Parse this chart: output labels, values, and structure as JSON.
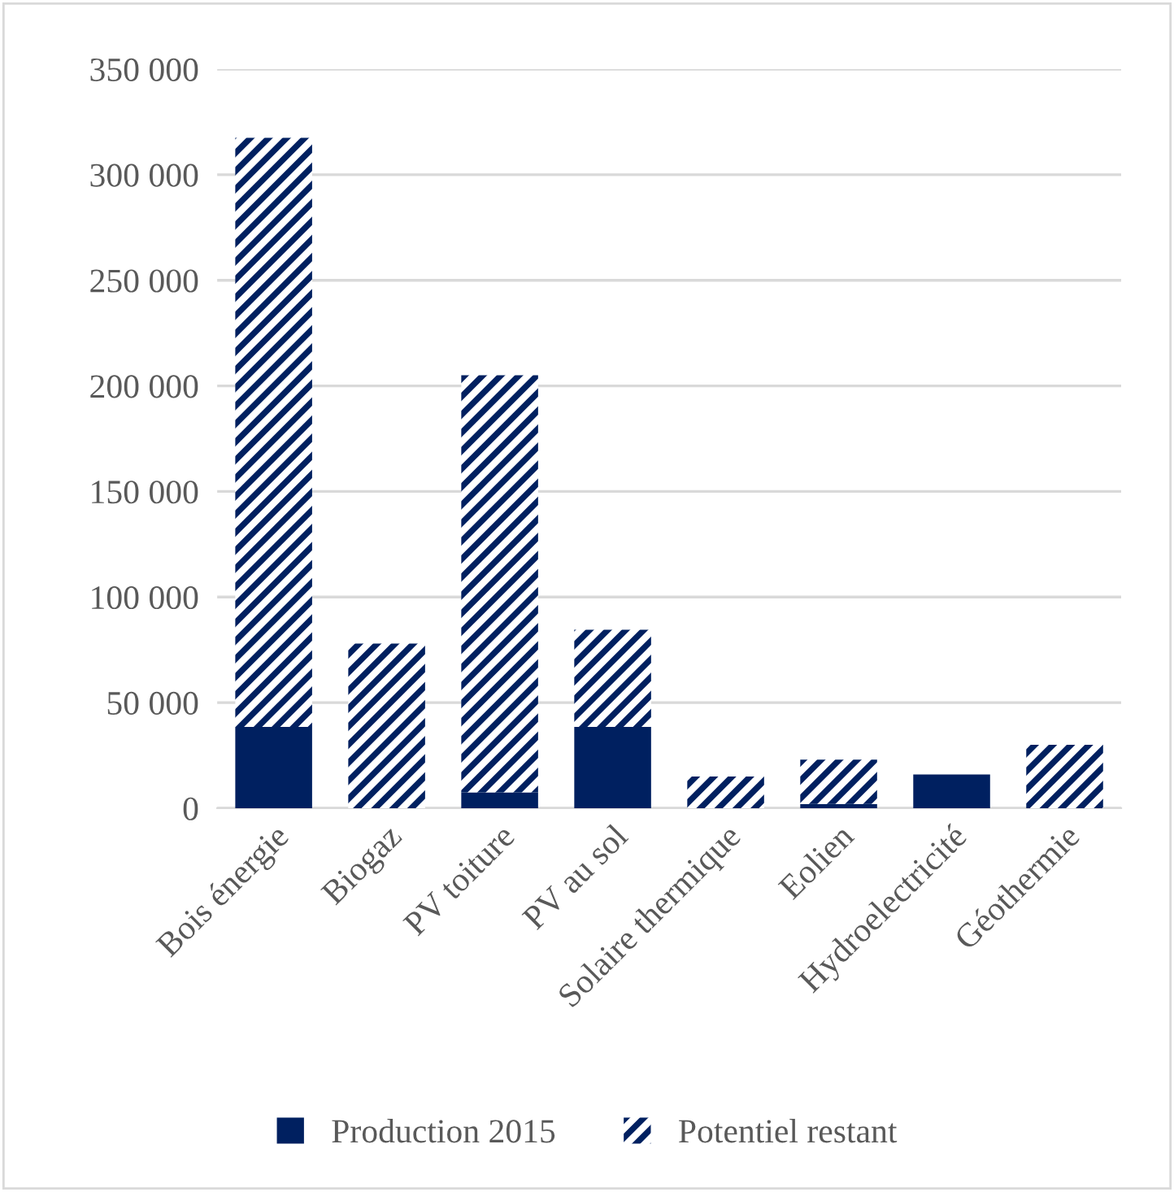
{
  "chart_data": {
    "type": "bar",
    "stacked": true,
    "categories": [
      "Bois énergie",
      "Biogaz",
      "PV toiture",
      "PV au sol",
      "Solaire thermique",
      "Eolien",
      "Hydroelectricité",
      "Géothermie"
    ],
    "series": [
      {
        "name": "Production 2015",
        "color": "#002060",
        "values": [
          38500,
          0,
          7500,
          38500,
          0,
          2000,
          16000,
          0
        ]
      },
      {
        "name": "Potentiel restant",
        "color": "#002060",
        "values": [
          279000,
          78000,
          197500,
          46000,
          15000,
          21000,
          0,
          30000
        ]
      }
    ],
    "ylim": [
      0,
      350000
    ],
    "yticks": [
      {
        "value": 0,
        "label": "0"
      },
      {
        "value": 50000,
        "label": "50 000"
      },
      {
        "value": 100000,
        "label": "100 000"
      },
      {
        "value": 150000,
        "label": "150 000"
      },
      {
        "value": 200000,
        "label": "200 000"
      },
      {
        "value": 250000,
        "label": "250 000"
      },
      {
        "value": 300000,
        "label": "300 000"
      },
      {
        "value": 350000,
        "label": "350 000"
      }
    ],
    "grid": "y",
    "legend": "bottom"
  }
}
